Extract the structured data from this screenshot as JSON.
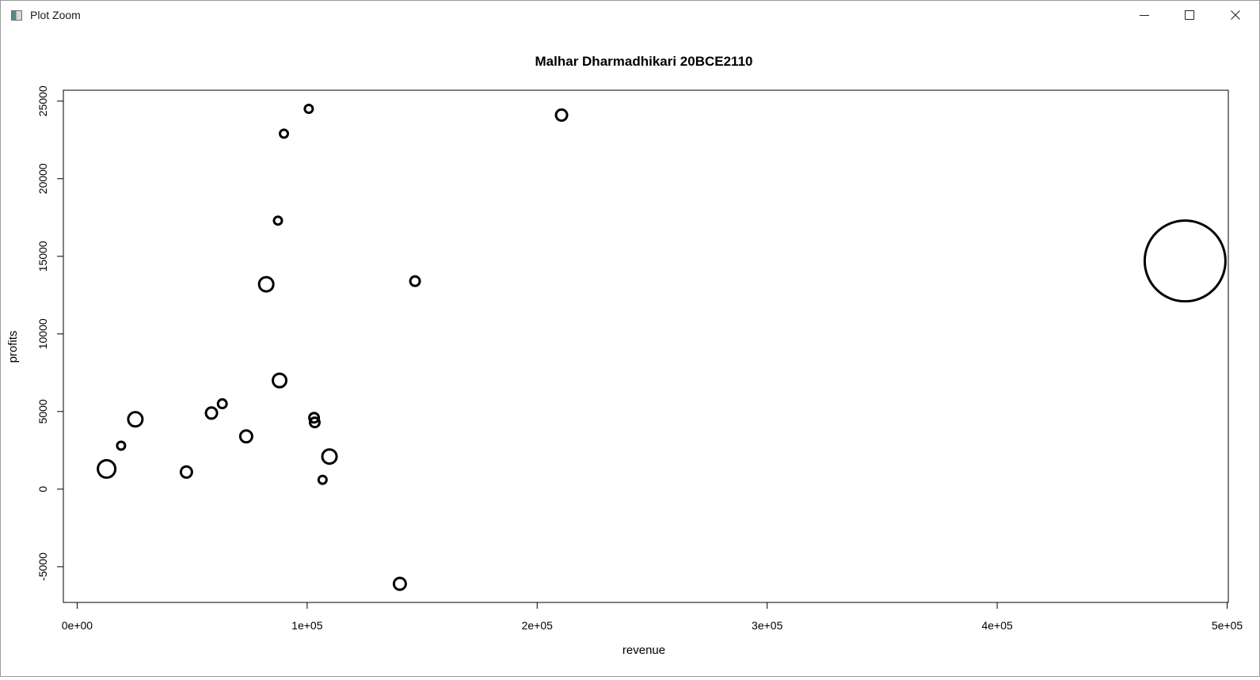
{
  "window": {
    "title": "Plot Zoom",
    "icons": {
      "app": "plot-app-icon",
      "minimize": "minimize-icon",
      "maximize": "maximize-icon",
      "close": "close-icon"
    }
  },
  "chart_data": {
    "type": "scatter",
    "title": "Malhar Dharmadhikari 20BCE2110",
    "xlabel": "revenue",
    "ylabel": "profits",
    "xlim": [
      -6000,
      500500
    ],
    "ylim": [
      -7300,
      25700
    ],
    "xticks": [
      {
        "value": 0,
        "label": "0e+00"
      },
      {
        "value": 100000,
        "label": "1e+05"
      },
      {
        "value": 200000,
        "label": "2e+05"
      },
      {
        "value": 300000,
        "label": "3e+05"
      },
      {
        "value": 400000,
        "label": "4e+05"
      },
      {
        "value": 500000,
        "label": "5e+05"
      }
    ],
    "yticks": [
      {
        "value": -5000,
        "label": "-5000"
      },
      {
        "value": 0,
        "label": "0"
      },
      {
        "value": 5000,
        "label": "5000"
      },
      {
        "value": 10000,
        "label": "10000"
      },
      {
        "value": 15000,
        "label": "15000"
      },
      {
        "value": 20000,
        "label": "20000"
      },
      {
        "value": 25000,
        "label": "25000"
      }
    ],
    "grid": false,
    "legend": "none",
    "marker": "open-circle",
    "marker_color": "#000000",
    "points": [
      {
        "x": 12800,
        "y": 1300,
        "size": 11
      },
      {
        "x": 19100,
        "y": 2800,
        "size": 5
      },
      {
        "x": 25300,
        "y": 4500,
        "size": 9
      },
      {
        "x": 47500,
        "y": 1100,
        "size": 7
      },
      {
        "x": 58400,
        "y": 4900,
        "size": 7
      },
      {
        "x": 63100,
        "y": 5500,
        "size": 5.5
      },
      {
        "x": 73500,
        "y": 3400,
        "size": 7.5
      },
      {
        "x": 82200,
        "y": 13200,
        "size": 9
      },
      {
        "x": 87300,
        "y": 17300,
        "size": 5
      },
      {
        "x": 88000,
        "y": 7000,
        "size": 8.5
      },
      {
        "x": 89900,
        "y": 22900,
        "size": 5
      },
      {
        "x": 100700,
        "y": 24500,
        "size": 5
      },
      {
        "x": 103000,
        "y": 4600,
        "size": 6
      },
      {
        "x": 103300,
        "y": 4300,
        "size": 6
      },
      {
        "x": 106700,
        "y": 600,
        "size": 5
      },
      {
        "x": 109700,
        "y": 2100,
        "size": 9
      },
      {
        "x": 140300,
        "y": -6100,
        "size": 7.5
      },
      {
        "x": 146900,
        "y": 13400,
        "size": 6
      },
      {
        "x": 210600,
        "y": 24100,
        "size": 7
      },
      {
        "x": 481700,
        "y": 14700,
        "size": 51
      }
    ]
  }
}
